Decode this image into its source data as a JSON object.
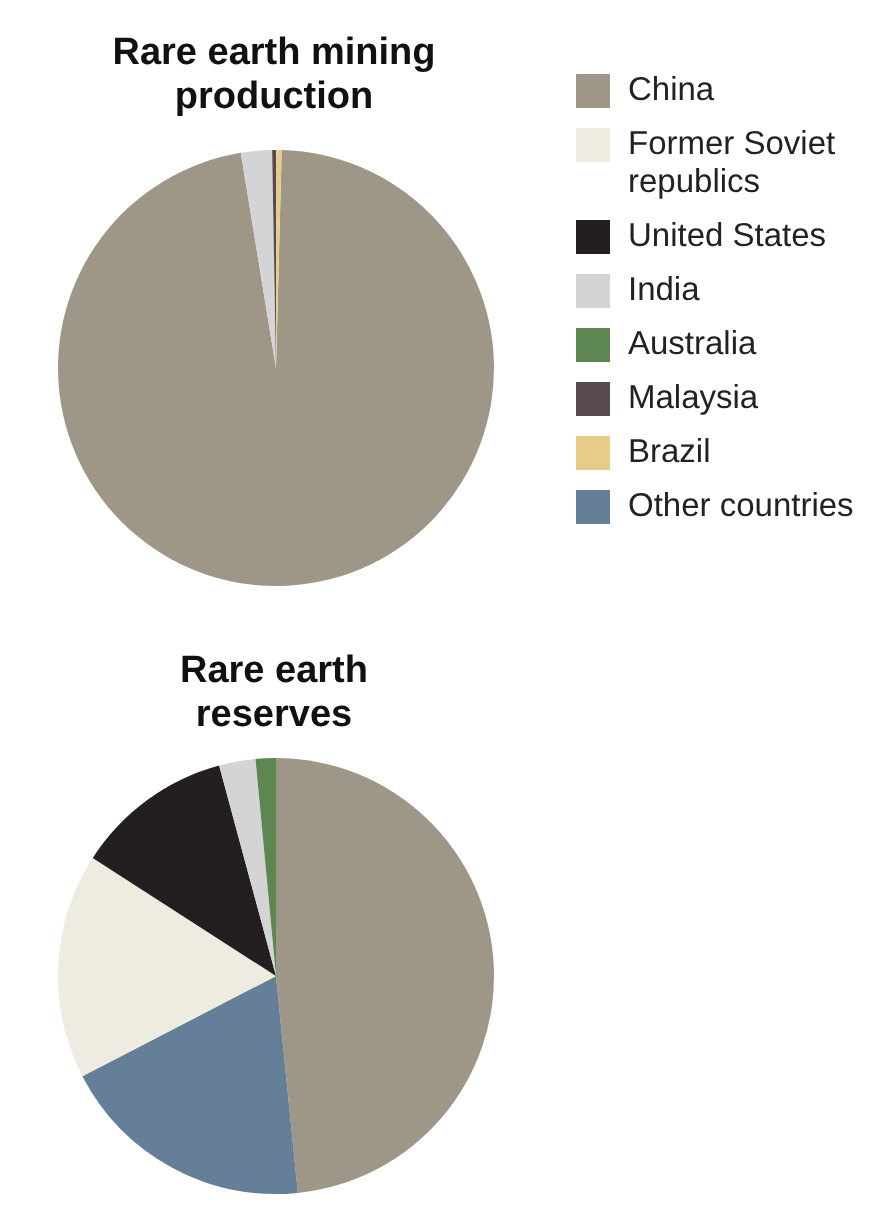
{
  "chart_data": [
    {
      "type": "pie",
      "title": "Rare earth mining production",
      "categories": [
        "China",
        "Former Soviet republics",
        "United States",
        "India",
        "Australia",
        "Malaysia",
        "Brazil",
        "Other countries"
      ],
      "values": [
        97,
        0,
        0,
        2.3,
        0,
        0.3,
        0.4,
        0
      ],
      "colors": [
        "#9e9686",
        "#eeebe0",
        "#231f20",
        "#d4d4d6",
        "#5e8650",
        "#574a4f",
        "#e8cb86",
        "#647f97"
      ],
      "legend": "right"
    },
    {
      "type": "pie",
      "title": "Rare earth reserves",
      "categories": [
        null,
        null,
        null,
        null,
        null,
        null
      ],
      "values": [
        48.4,
        19,
        16.7,
        11.7,
        2.7,
        1.5
      ],
      "colors": [
        "#9e9686",
        "#647f97",
        "#eeebe0",
        "#231f20",
        "#d4d4d6",
        "#5e8650"
      ]
    }
  ]
}
